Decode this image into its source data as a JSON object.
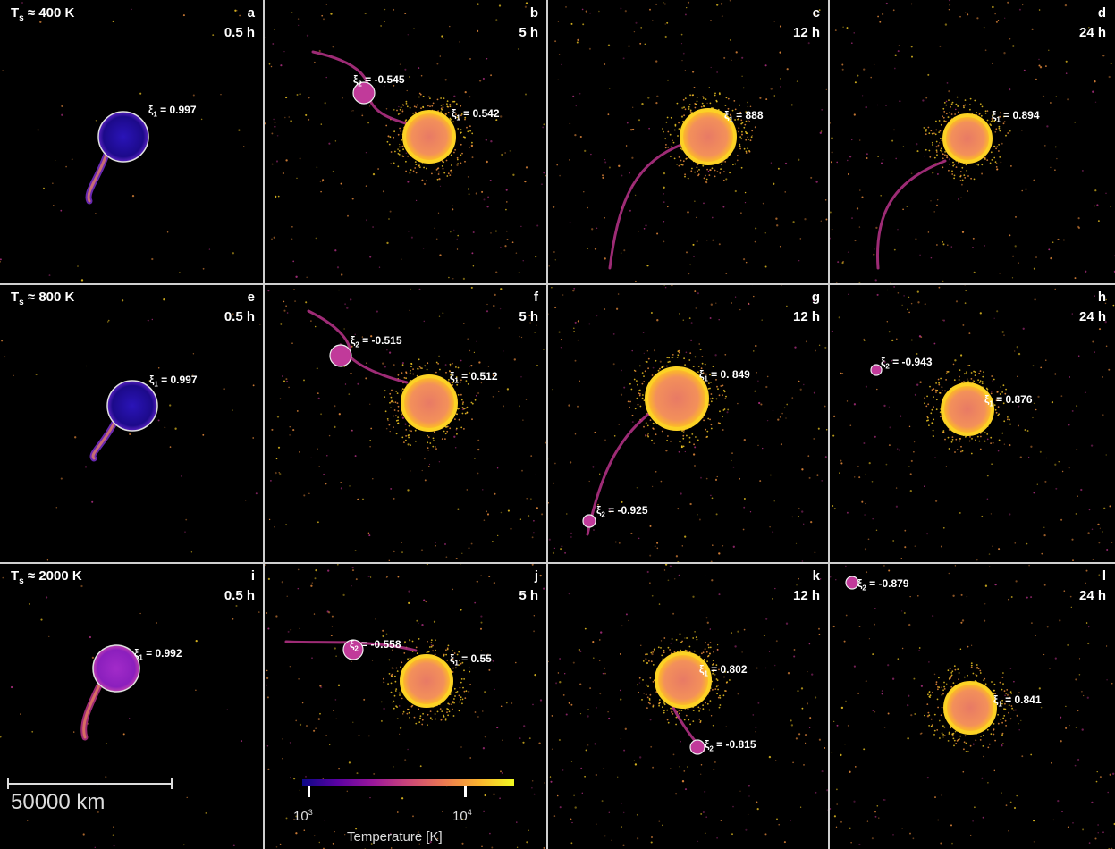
{
  "colors": {
    "cold": "#2a14b8",
    "warm": "#f89540",
    "hot": "#fcd225",
    "stream": "#b83289",
    "divider": "#cfcfcf"
  },
  "panels": [
    {
      "letter": "a",
      "time": "0.5 h",
      "ts": "400 K",
      "xi1": "0.997"
    },
    {
      "letter": "b",
      "time": "5 h",
      "xi1": "0.542",
      "xi2": "-0.545"
    },
    {
      "letter": "c",
      "time": "12 h",
      "xi1": "888"
    },
    {
      "letter": "d",
      "time": "24 h",
      "xi1": "0.894"
    },
    {
      "letter": "e",
      "time": "0.5 h",
      "ts": "800 K",
      "xi1": "0.997"
    },
    {
      "letter": "f",
      "time": "5 h",
      "xi1": "0.512",
      "xi2": "-0.515"
    },
    {
      "letter": "g",
      "time": "12 h",
      "xi1": " 849",
      "xi1_prefix": "0.",
      "xi2": "-0.925"
    },
    {
      "letter": "h",
      "time": "24 h",
      "xi1": "0.876",
      "xi2": "-0.943"
    },
    {
      "letter": "i",
      "time": "0.5 h",
      "ts": "2000 K",
      "xi1": "0.992"
    },
    {
      "letter": "j",
      "time": "5 h",
      "xi1": "0.55",
      "xi2": "-0.558"
    },
    {
      "letter": "k",
      "time": "12 h",
      "xi1": "0.802",
      "xi2": "-0.815"
    },
    {
      "letter": "l",
      "time": "24 h",
      "xi1": "0.841",
      "xi2": "-0.879"
    }
  ],
  "labels": {
    "ts_prefix": "T",
    "ts_sub": "s",
    "approx": " ≈ ",
    "xi_symbol": "ξ",
    "xi1_sub": "1",
    "xi2_sub": "2",
    "equals": " = "
  },
  "scalebar": {
    "label": "50000 km"
  },
  "colorbar": {
    "label": "Temperature [K]",
    "tick_low_base": "10",
    "tick_low_exp": "3",
    "tick_high_base": "10",
    "tick_high_exp": "4"
  }
}
